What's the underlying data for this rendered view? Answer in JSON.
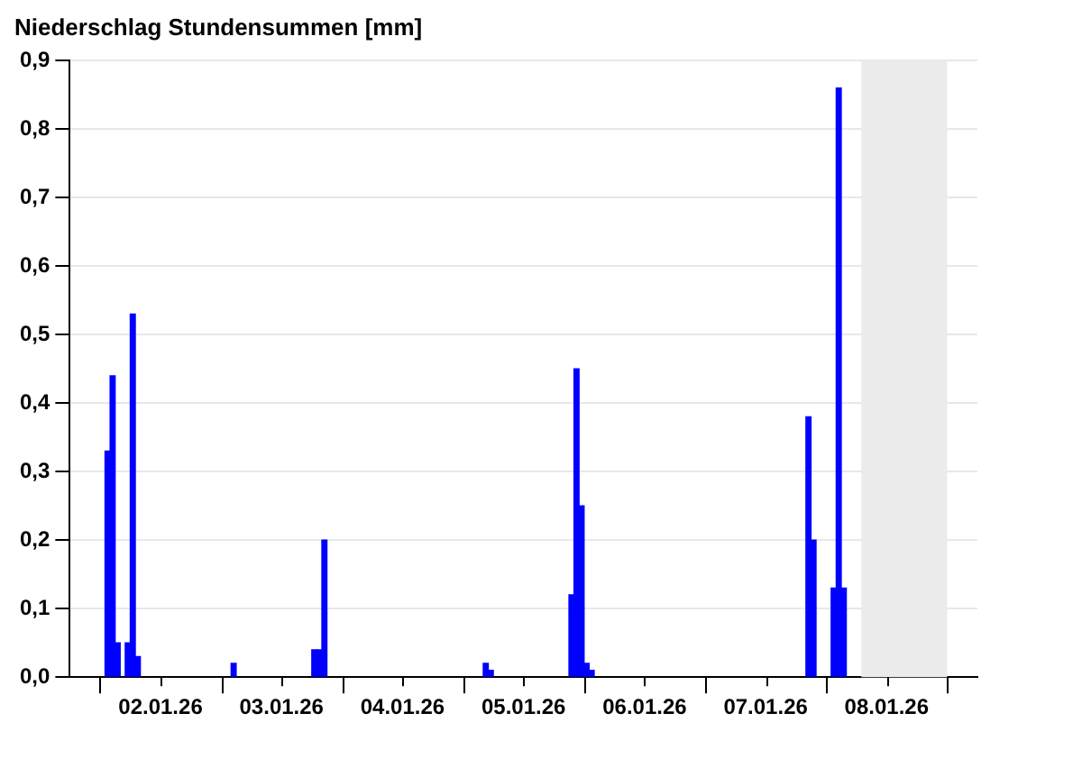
{
  "chart_data": {
    "type": "bar",
    "title": "Niederschlag Stundensummen [mm]",
    "x": [
      "--01-02T01:30",
      "--01-02T02:30",
      "--01-02T03:30",
      "--01-02T05:30",
      "--01-02T06:30",
      "--01-02T07:30",
      "--01-03T02:30",
      "--01-03T18:30",
      "--01-03T19:30",
      "--01-03T20:30",
      "--01-05T04:30",
      "--01-05T05:30",
      "--01-05T21:30",
      "--01-05T22:30",
      "--01-05T23:30",
      "--01-06T00:30",
      "--01-06T01:30",
      "--01-07T20:30",
      "--01-07T21:30",
      "--01-08T01:30",
      "--01-08T02:30",
      "--01-08T03:30"
    ],
    "values": [
      0.33,
      0.44,
      0.05,
      0.05,
      0.53,
      0.03,
      0.02,
      0.04,
      0.04,
      0.2,
      0.02,
      0.01,
      0.12,
      0.45,
      0.25,
      0.02,
      0.01,
      0.38,
      0.2,
      0.13,
      0.86,
      0.13
    ],
    "color": "#0000ff",
    "xlim": [
      "--01-02T00:00",
      "--01-09T00:00"
    ],
    "xticks": [
      {
        "value": "--01-02T00:00",
        "label": null
      },
      {
        "value": "--01-02T12:00",
        "label": "02.01.26"
      },
      {
        "value": "--01-03T00:00",
        "label": null
      },
      {
        "value": "--01-03T12:00",
        "label": "03.01.26"
      },
      {
        "value": "--01-04T00:00",
        "label": null
      },
      {
        "value": "--01-04T12:00",
        "label": "04.01.26"
      },
      {
        "value": "--01-05T00:00",
        "label": null
      },
      {
        "value": "--01-05T12:00",
        "label": "05.01.26"
      },
      {
        "value": "--01-06T00:00",
        "label": null
      },
      {
        "value": "--01-06T12:00",
        "label": "06.01.26"
      },
      {
        "value": "--01-07T00:00",
        "label": null
      },
      {
        "value": "--01-07T12:00",
        "label": "07.01.26"
      },
      {
        "value": "--01-08T00:00",
        "label": null
      },
      {
        "value": "--01-08T12:00",
        "label": "08.01.26"
      },
      {
        "value": "--01-09T00:00",
        "label": null
      }
    ],
    "ylim": [
      0,
      0.9
    ],
    "yticks": [
      {
        "value": 0,
        "label": "0,0"
      },
      {
        "value": 0.1,
        "label": "0,1"
      },
      {
        "value": 0.2,
        "label": "0,2"
      },
      {
        "value": 0.3,
        "label": "0,3"
      },
      {
        "value": 0.4,
        "label": "0,4"
      },
      {
        "value": 0.5,
        "label": "0,5"
      },
      {
        "value": 0.6,
        "label": "0,6"
      },
      {
        "value": 0.7,
        "label": "0,7"
      },
      {
        "value": 0.8,
        "label": "0,8"
      },
      {
        "value": 0.9,
        "label": "0,9"
      }
    ],
    "bands": [
      {
        "axis": "x",
        "from": "--01-08T07:00",
        "to": "--01-09T00:00",
        "color": "#ebebeb"
      }
    ],
    "grid": "y"
  }
}
